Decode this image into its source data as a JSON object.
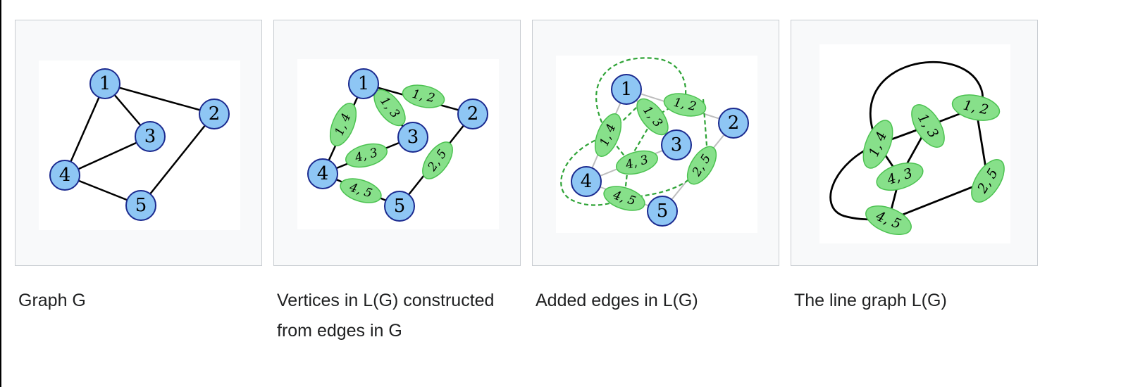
{
  "panels": [
    {
      "caption": "Graph G"
    },
    {
      "caption": "Vertices in L(G) constructed from edges in G"
    },
    {
      "caption": "Added edges in L(G)"
    },
    {
      "caption": "The line graph L(G)"
    }
  ],
  "graph": {
    "node_labels": [
      "1",
      "2",
      "3",
      "4",
      "5"
    ],
    "edge_labels": [
      "1, 2",
      "1, 3",
      "1, 4",
      "2, 5",
      "4, 3",
      "4, 5"
    ]
  },
  "colors": {
    "node_fill": "#8ec6f4",
    "node_stroke": "#1b2a8f",
    "edge_vertex_fill": "#87e08a",
    "edge_vertex_stroke": "#4cc251",
    "dashed_edge": "#2ea336",
    "grey_edge": "#bdbdbd",
    "panel_bg": "#f8f9fa",
    "panel_border": "#c8ccd1"
  }
}
